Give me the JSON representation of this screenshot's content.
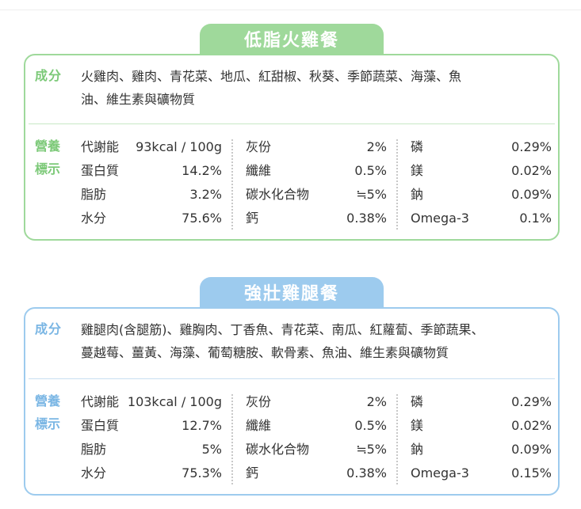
{
  "cards": [
    {
      "title": "低脂火雞餐",
      "ingredients_label": "成分",
      "ingredients_lines": [
        "火雞肉、雞肉、青花菜、地瓜、紅甜椒、秋葵、季節蔬菜、海藻、魚",
        "油、維生素與礦物質"
      ],
      "nutrition_label": [
        "營養",
        "標示"
      ],
      "columns": [
        [
          {
            "name": "代謝能",
            "value": "93kcal / 100g"
          },
          {
            "name": "蛋白質",
            "value": "14.2%"
          },
          {
            "name": "脂肪",
            "value": "3.2%"
          },
          {
            "name": "水分",
            "value": "75.6%"
          }
        ],
        [
          {
            "name": "灰份",
            "value": "2%"
          },
          {
            "name": "纖維",
            "value": "0.5%"
          },
          {
            "name": "碳水化合物",
            "value": "≒5%"
          },
          {
            "name": "鈣",
            "value": "0.38%"
          }
        ],
        [
          {
            "name": "磷",
            "value": "0.29%"
          },
          {
            "name": "鎂",
            "value": "0.02%"
          },
          {
            "name": "鈉",
            "value": "0.09%"
          },
          {
            "name": "Omega-3",
            "value": "0.1%"
          }
        ]
      ]
    },
    {
      "title": "強壯雞腿餐",
      "ingredients_label": "成分",
      "ingredients_lines": [
        "雞腿肉(含腿筋)、雞胸肉、丁香魚、青花菜、南瓜、紅蘿蔔、季節蔬果、",
        "蔓越莓、薑黃、海藻、葡萄糖胺、軟骨素、魚油、維生素與礦物質"
      ],
      "nutrition_label": [
        "營養",
        "標示"
      ],
      "columns": [
        [
          {
            "name": "代謝能",
            "value": "103kcal / 100g"
          },
          {
            "name": "蛋白質",
            "value": "12.7%"
          },
          {
            "name": "脂肪",
            "value": "5%"
          },
          {
            "name": "水分",
            "value": "75.3%"
          }
        ],
        [
          {
            "name": "灰份",
            "value": "2%"
          },
          {
            "name": "纖維",
            "value": "0.5%"
          },
          {
            "name": "碳水化合物",
            "value": "≒5%"
          },
          {
            "name": "鈣",
            "value": "0.38%"
          }
        ],
        [
          {
            "name": "磷",
            "value": "0.29%"
          },
          {
            "name": "鎂",
            "value": "0.02%"
          },
          {
            "name": "鈉",
            "value": "0.09%"
          },
          {
            "name": "Omega-3",
            "value": "0.15%"
          }
        ]
      ]
    }
  ],
  "colors": {
    "green": "#9fd99b",
    "green_text": "#7cc978",
    "blue": "#9dcbee",
    "blue_text": "#7ab6e4"
  }
}
